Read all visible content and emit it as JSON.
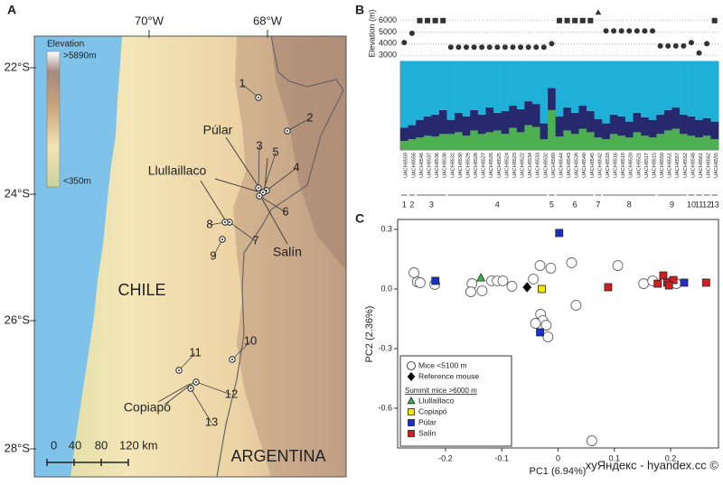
{
  "map": {
    "panel": "A",
    "lon_labels": [
      "70°W",
      "68°W"
    ],
    "lat_labels": [
      "22°S",
      "24°S",
      "26°S",
      "28°S"
    ],
    "legend_title": "Elevation",
    "legend_max": ">5890m",
    "legend_min": "<350m",
    "sites": [
      "1",
      "2",
      "3",
      "4",
      "5",
      "6",
      "7",
      "8",
      "9",
      "10",
      "11",
      "12",
      "13"
    ],
    "places": [
      "Púlar",
      "Llullaillaco",
      "Salín",
      "Copiapó"
    ],
    "countries": [
      "CHILE",
      "ARGENTINA"
    ],
    "scale_labels": [
      "0",
      "40",
      "80",
      "120 km"
    ]
  },
  "chart_data": [
    {
      "type": "structure",
      "panel": "B",
      "ylabel": "Elevation (m)",
      "ylim": [
        2700,
        7000
      ],
      "yticks": [
        3000,
        4000,
        5000,
        6000
      ],
      "grid": true,
      "categories": [
        "UACH8559",
        "UACH8556",
        "UACH8546",
        "UACH8537",
        "UACH8536",
        "UACH8538",
        "UACH8531",
        "UACH8530",
        "UACH8529",
        "UACH8528",
        "UACH8527",
        "UACH8526",
        "UACH8525",
        "UACH8524",
        "UACH8523",
        "UACH8522",
        "UACH8534",
        "UACH8533",
        "UACH8532",
        "UACH8560",
        "UACH8544",
        "UACH8543",
        "UACH8539",
        "UACH8540",
        "UACH8545",
        "UACH8542",
        "UACH8518",
        "UACH8516",
        "UACH8519",
        "UACH8520",
        "UACH8521",
        "UACH8517",
        "UACH8515",
        "UACH8550",
        "UACH8551",
        "UACH8557",
        "UACH8552",
        "UACH8548",
        "UACH8561",
        "UACH8562",
        "UACH8555"
      ],
      "elevation": {
        "color": "#333333",
        "values": [
          4100,
          4900,
          6000,
          6000,
          6000,
          6000,
          3700,
          3700,
          3700,
          3700,
          3700,
          3700,
          3700,
          3700,
          3700,
          3700,
          3700,
          3700,
          3700,
          4000,
          6000,
          6000,
          6000,
          6000,
          6000,
          6700,
          5100,
          5100,
          5100,
          5100,
          5100,
          5100,
          5100,
          3800,
          3800,
          3800,
          3800,
          4100,
          3200,
          4000,
          6000
        ],
        "markers": [
          "circle",
          "circle",
          "square",
          "square",
          "square",
          "square",
          "circle",
          "circle",
          "circle",
          "circle",
          "circle",
          "circle",
          "circle",
          "circle",
          "circle",
          "circle",
          "circle",
          "circle",
          "circle",
          "circle",
          "square",
          "square",
          "square",
          "square",
          "square",
          "triangle",
          "circle",
          "circle",
          "circle",
          "circle",
          "circle",
          "circle",
          "circle",
          "circle",
          "circle",
          "circle",
          "circle",
          "circle",
          "circle",
          "circle",
          "square"
        ]
      },
      "bar_ylim": [
        0,
        1
      ],
      "series": [
        {
          "color": "#4caf50",
          "values": [
            0.1,
            0.12,
            0.14,
            0.16,
            0.15,
            0.18,
            0.18,
            0.2,
            0.16,
            0.22,
            0.18,
            0.2,
            0.22,
            0.18,
            0.25,
            0.2,
            0.28,
            0.26,
            0.12,
            0.45,
            0.15,
            0.22,
            0.18,
            0.24,
            0.2,
            0.14,
            0.12,
            0.18,
            0.16,
            0.14,
            0.2,
            0.16,
            0.14,
            0.18,
            0.22,
            0.24,
            0.18,
            0.16,
            0.14,
            0.16,
            0.12
          ]
        },
        {
          "color": "#27286e",
          "values": [
            0.15,
            0.16,
            0.2,
            0.22,
            0.25,
            0.27,
            0.16,
            0.22,
            0.22,
            0.23,
            0.22,
            0.28,
            0.2,
            0.26,
            0.25,
            0.26,
            0.27,
            0.26,
            0.18,
            0.25,
            0.23,
            0.26,
            0.24,
            0.26,
            0.24,
            0.21,
            0.18,
            0.22,
            0.22,
            0.18,
            0.22,
            0.21,
            0.2,
            0.22,
            0.23,
            0.24,
            0.22,
            0.22,
            0.2,
            0.2,
            0.2
          ]
        },
        {
          "color": "#1fb0d8",
          "values": [
            0.75,
            0.72,
            0.66,
            0.62,
            0.6,
            0.55,
            0.66,
            0.58,
            0.62,
            0.55,
            0.6,
            0.52,
            0.58,
            0.56,
            0.5,
            0.54,
            0.45,
            0.48,
            0.7,
            0.3,
            0.62,
            0.52,
            0.58,
            0.5,
            0.56,
            0.65,
            0.7,
            0.6,
            0.62,
            0.68,
            0.58,
            0.63,
            0.66,
            0.6,
            0.55,
            0.52,
            0.6,
            0.62,
            0.66,
            0.64,
            0.68
          ]
        }
      ],
      "groups": [
        {
          "label": "1",
          "size": 1
        },
        {
          "label": "2",
          "size": 1
        },
        {
          "label": "3",
          "size": 4
        },
        {
          "label": "4",
          "size": 13
        },
        {
          "label": "5",
          "size": 1
        },
        {
          "label": "6",
          "size": 5
        },
        {
          "label": "7",
          "size": 1
        },
        {
          "label": "8",
          "size": 7
        },
        {
          "label": "9",
          "size": 4
        },
        {
          "label": "10",
          "size": 1
        },
        {
          "label": "11",
          "size": 1
        },
        {
          "label": "12",
          "size": 1
        },
        {
          "label": "13",
          "size": 1
        }
      ]
    },
    {
      "type": "scatter",
      "panel": "C",
      "xlabel": "PC1 (6.94%)",
      "ylabel": "PC2 (2.36%)",
      "xlim": [
        -0.285,
        0.285
      ],
      "ylim": [
        -0.8,
        0.35
      ],
      "xticks": [
        -0.2,
        -0.1,
        0,
        0.1,
        0.2
      ],
      "yticks": [
        0.3,
        {
          "value": 0,
          "label": "0.0"
        },
        -0.3,
        -0.6
      ],
      "legend_subtitle": "Summit mice >6000 m",
      "series": [
        {
          "name": "Mice <5100 m",
          "marker": "circle",
          "color": "#ffffff",
          "x": [
            -0.256,
            -0.25,
            -0.245,
            -0.219,
            -0.153,
            -0.155,
            -0.135,
            -0.118,
            -0.108,
            -0.098,
            -0.082,
            -0.044,
            -0.032,
            -0.013,
            0.024,
            0.032,
            -0.031,
            -0.027,
            -0.04,
            -0.021,
            -0.018,
            0.106,
            0.06,
            0.152,
            0.168,
            0.202,
            0.21
          ],
          "y": [
            0.082,
            0.036,
            0.032,
            0.023,
            0.027,
            -0.014,
            -0.009,
            0.041,
            0.041,
            0.041,
            0.014,
            0.05,
            0.118,
            0.105,
            0.132,
            -0.082,
            -0.127,
            -0.159,
            -0.173,
            -0.182,
            -0.241,
            0.118,
            -0.764,
            0.027,
            0.041,
            0.036,
            0.027
          ]
        },
        {
          "name": "Reference mouse",
          "marker": "diamond",
          "color": "#000000",
          "x": [
            -0.055
          ],
          "y": [
            0.009
          ]
        },
        {
          "name": "Llullaillaco",
          "marker": "triangle",
          "color": "#3cb44b",
          "x": [
            -0.137
          ],
          "y": [
            0.055
          ]
        },
        {
          "name": "Copiapó",
          "marker": "square",
          "color": "#f5e400",
          "x": [
            -0.029
          ],
          "y": [
            0.0
          ]
        },
        {
          "name": "Púlar",
          "marker": "square",
          "color": "#1a2fc8",
          "x": [
            0.002,
            -0.218,
            -0.032,
            0.224
          ],
          "y": [
            0.282,
            0.041,
            -0.218,
            0.032
          ]
        },
        {
          "name": "Salín",
          "marker": "square",
          "color": "#d21f1f",
          "x": [
            0.089,
            0.177,
            0.187,
            0.194,
            0.205,
            0.197,
            0.263
          ],
          "y": [
            0.009,
            0.027,
            0.068,
            0.032,
            0.045,
            0.018,
            0.032
          ]
        }
      ]
    }
  ],
  "watermark": "хуЯндекс - hyandex.cc ©"
}
